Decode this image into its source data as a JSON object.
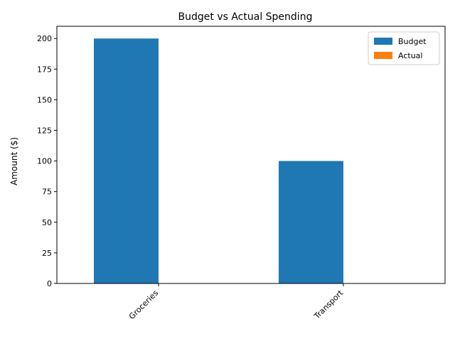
{
  "chart_data": {
    "type": "bar",
    "title": "Budget vs Actual Spending",
    "xlabel": "",
    "ylabel": "Amount ($)",
    "categories": [
      "Groceries",
      "Transport"
    ],
    "series": [
      {
        "name": "Budget",
        "values": [
          200,
          100
        ],
        "color": "#1f77b4"
      },
      {
        "name": "Actual",
        "values": [
          0,
          0
        ],
        "color": "#ff7f0e"
      }
    ],
    "ylim": [
      0,
      210
    ],
    "yticks": [
      0,
      25,
      50,
      75,
      100,
      125,
      150,
      175,
      200
    ],
    "grid": false,
    "legend_position": "top-right"
  }
}
